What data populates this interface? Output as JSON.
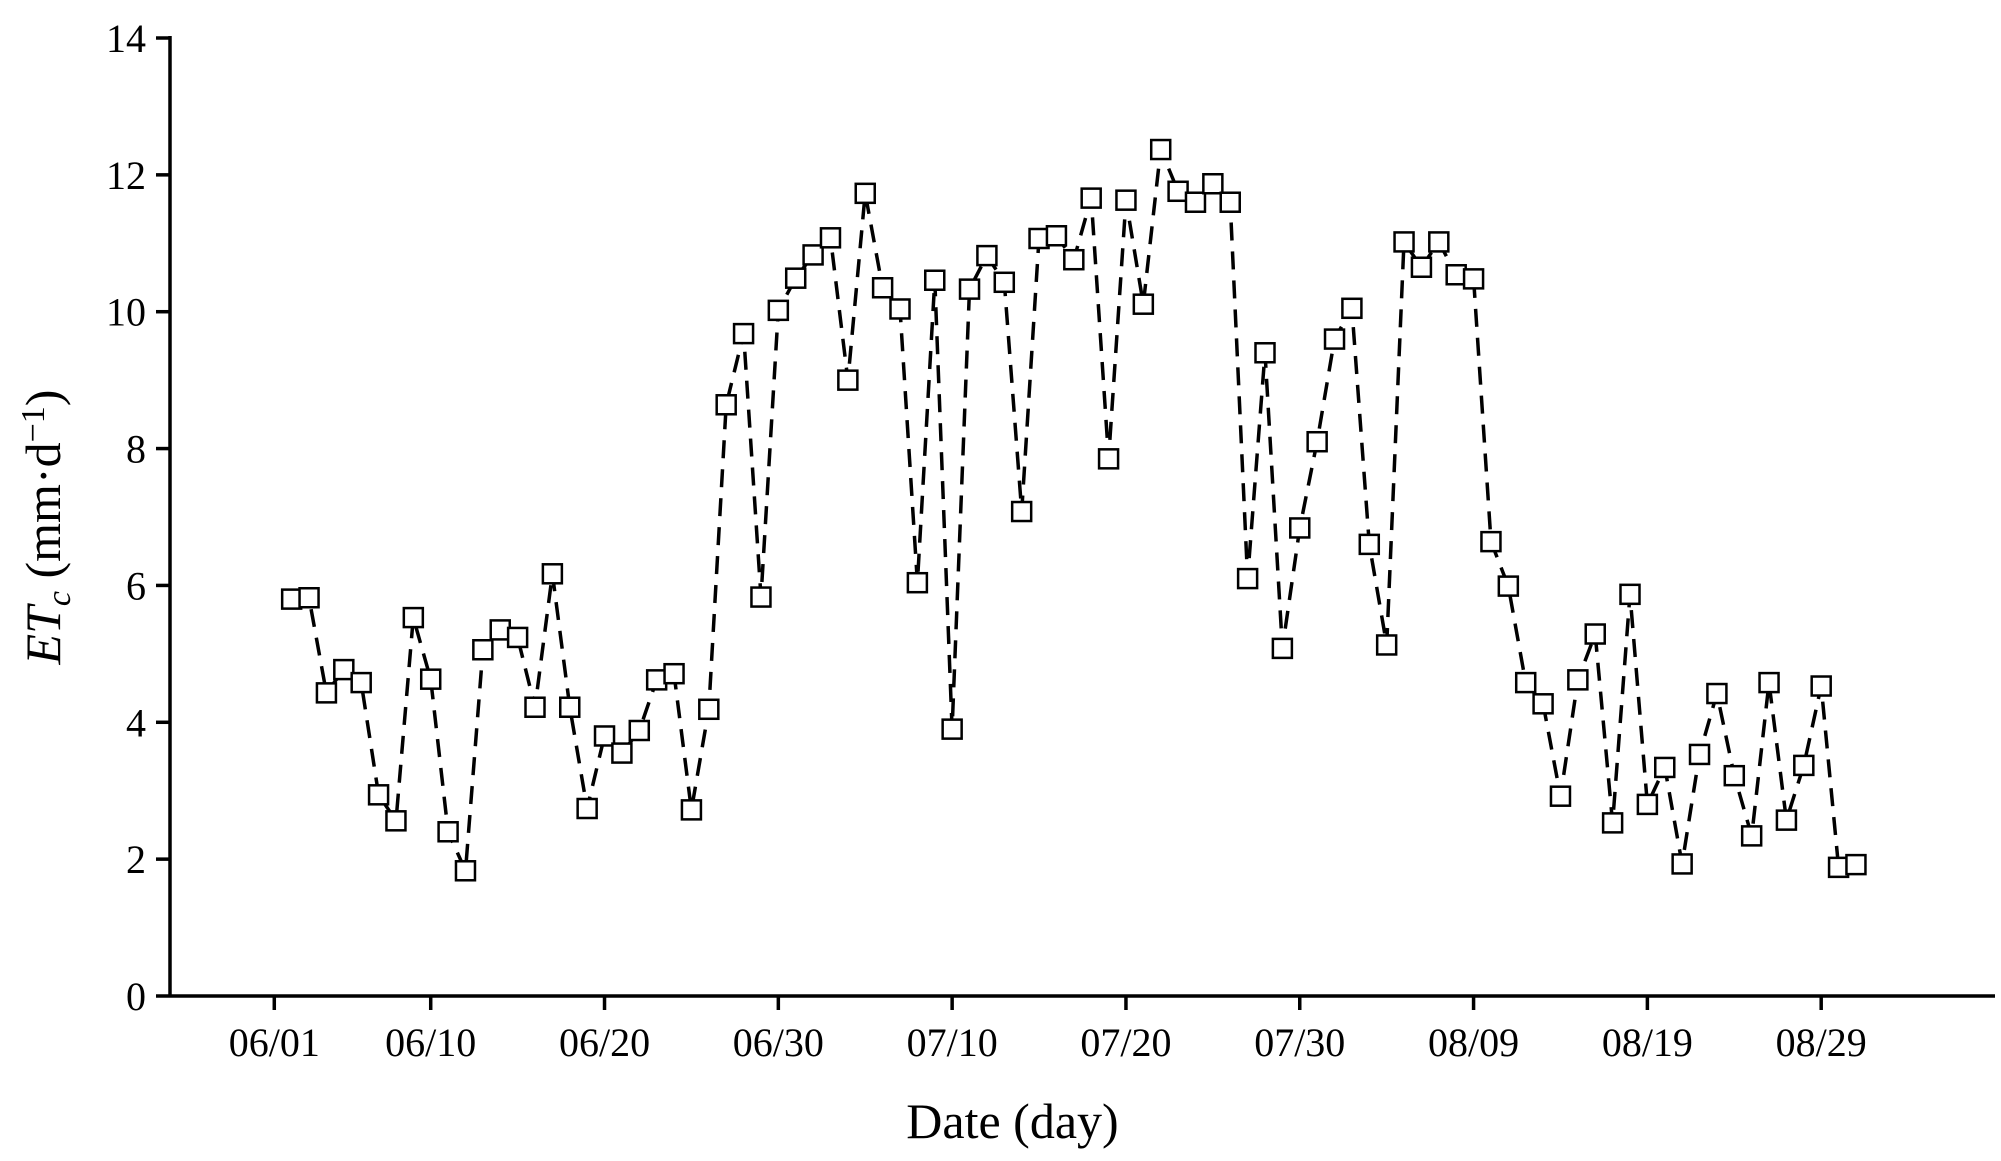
{
  "chart_data": {
    "type": "line",
    "title": "",
    "xlabel": "Date (day)",
    "ylabel_main": "ET",
    "ylabel_sub": "c",
    "ylabel_unit_prefix": " (mm·d",
    "ylabel_unit_sup": "−1",
    "ylabel_unit_suffix": ")",
    "ylim": [
      0,
      14
    ],
    "yticks": [
      0,
      2,
      4,
      6,
      8,
      10,
      12,
      14
    ],
    "ytick_labels": [
      "0",
      "2",
      "4",
      "6",
      "8",
      "10",
      "12",
      "14"
    ],
    "xlim": [
      "2001-05-26",
      "2001-09-08"
    ],
    "xticks": [
      "2001-06-01",
      "2001-06-10",
      "2001-06-20",
      "2001-06-30",
      "2001-07-10",
      "2001-07-20",
      "2001-07-30",
      "2001-08-09",
      "2001-08-19",
      "2001-08-29"
    ],
    "xtick_labels": [
      "06/01",
      "06/10",
      "06/20",
      "06/30",
      "07/10",
      "07/20",
      "07/30",
      "08/09",
      "08/19",
      "08/29"
    ],
    "grid": false,
    "legend": "none",
    "marker": "open-square",
    "line_style": "dashed",
    "colors": {
      "line": "#000000",
      "marker_fill": "#ffffff",
      "marker_stroke": "#000000"
    },
    "series": [
      {
        "x": [
          "2001-06-02",
          "2001-06-03",
          "2001-06-04",
          "2001-06-05",
          "2001-06-06",
          "2001-06-07",
          "2001-06-08",
          "2001-06-09",
          "2001-06-10",
          "2001-06-11",
          "2001-06-12",
          "2001-06-13",
          "2001-06-14",
          "2001-06-15",
          "2001-06-16",
          "2001-06-17",
          "2001-06-18",
          "2001-06-19",
          "2001-06-20",
          "2001-06-21",
          "2001-06-22",
          "2001-06-23",
          "2001-06-24",
          "2001-06-25",
          "2001-06-26",
          "2001-06-27",
          "2001-06-28",
          "2001-06-29",
          "2001-06-30",
          "2001-07-01",
          "2001-07-02",
          "2001-07-03",
          "2001-07-04",
          "2001-07-05",
          "2001-07-06",
          "2001-07-07",
          "2001-07-08",
          "2001-07-09",
          "2001-07-10",
          "2001-07-11",
          "2001-07-12",
          "2001-07-13",
          "2001-07-14",
          "2001-07-15",
          "2001-07-16",
          "2001-07-17",
          "2001-07-18",
          "2001-07-19",
          "2001-07-20",
          "2001-07-21",
          "2001-07-22",
          "2001-07-23",
          "2001-07-24",
          "2001-07-25",
          "2001-07-26",
          "2001-07-27",
          "2001-07-28",
          "2001-07-29",
          "2001-07-30",
          "2001-07-31",
          "2001-08-01",
          "2001-08-02",
          "2001-08-03",
          "2001-08-04",
          "2001-08-05",
          "2001-08-06",
          "2001-08-07",
          "2001-08-08",
          "2001-08-09",
          "2001-08-10",
          "2001-08-11",
          "2001-08-12",
          "2001-08-13",
          "2001-08-14",
          "2001-08-15",
          "2001-08-16",
          "2001-08-17",
          "2001-08-18",
          "2001-08-19",
          "2001-08-20",
          "2001-08-21",
          "2001-08-22",
          "2001-08-23",
          "2001-08-24",
          "2001-08-25",
          "2001-08-26",
          "2001-08-27",
          "2001-08-28",
          "2001-08-29",
          "2001-08-30",
          "2001-08-31"
        ],
        "values": [
          5.8,
          5.82,
          4.43,
          4.77,
          4.58,
          2.94,
          2.56,
          5.53,
          4.63,
          2.4,
          1.83,
          5.06,
          5.35,
          5.24,
          4.22,
          6.17,
          4.22,
          2.74,
          3.8,
          3.55,
          3.88,
          4.62,
          4.71,
          2.72,
          4.19,
          8.64,
          9.68,
          5.83,
          10.02,
          10.49,
          10.83,
          11.08,
          9.0,
          11.73,
          10.35,
          10.04,
          6.04,
          10.46,
          3.9,
          10.33,
          10.82,
          10.43,
          7.08,
          11.07,
          11.11,
          10.76,
          11.66,
          7.85,
          11.63,
          10.11,
          12.37,
          11.76,
          11.6,
          11.87,
          11.6,
          6.1,
          9.4,
          5.08,
          6.84,
          8.1,
          9.6,
          10.05,
          6.6,
          5.13,
          11.02,
          10.65,
          11.02,
          10.54,
          10.48,
          6.64,
          5.99,
          4.58,
          4.27,
          2.92,
          4.62,
          5.29,
          2.53,
          5.87,
          2.8,
          3.34,
          1.93,
          3.53,
          4.42,
          3.22,
          2.34,
          4.58,
          2.57,
          3.37,
          4.53,
          1.88,
          1.92
        ]
      }
    ]
  }
}
